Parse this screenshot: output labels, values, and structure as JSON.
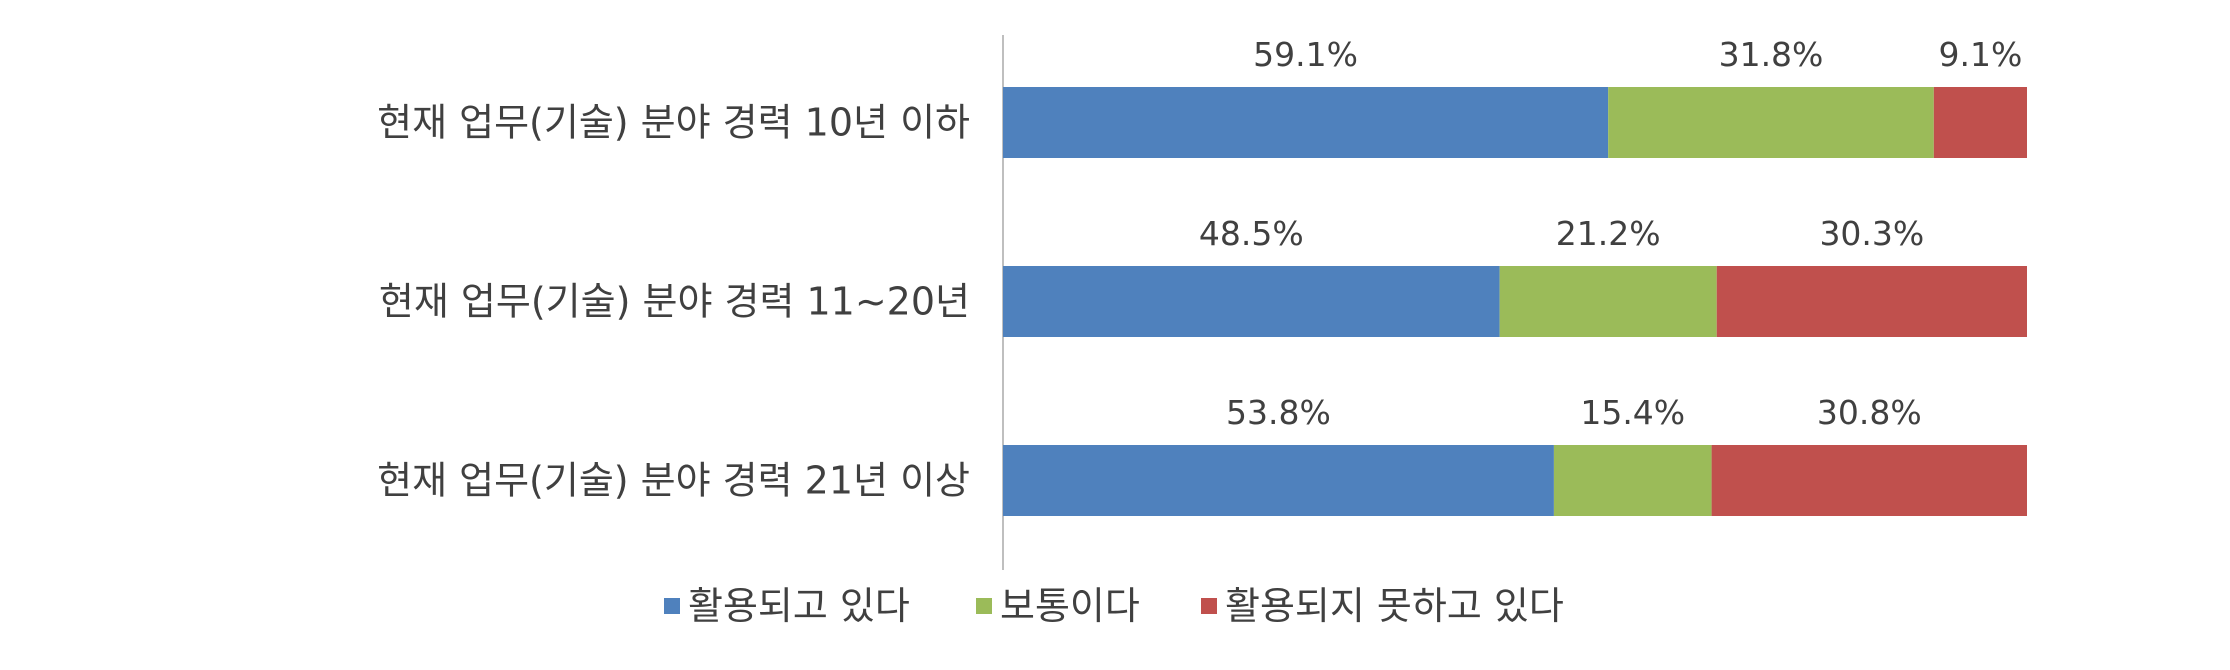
{
  "chart_data": {
    "type": "bar",
    "orientation": "horizontal",
    "stacked": true,
    "title": "",
    "xlabel": "",
    "ylabel": "",
    "xlim": [
      0,
      100
    ],
    "grid": false,
    "legend_position": "bottom",
    "categories": [
      "현재 업무(기술) 분야 경력 10년 이하",
      "현재 업무(기술) 분야 경력 11~20년",
      "현재 업무(기술) 분야 경력 21년 이상"
    ],
    "series": [
      {
        "name": "활용되고 있다",
        "color": "#4F81BD",
        "values": [
          59.1,
          48.5,
          53.8
        ],
        "labels": [
          "59.1%",
          "48.5%",
          "53.8%"
        ]
      },
      {
        "name": "보통이다",
        "color": "#9BBB59",
        "values": [
          31.8,
          21.2,
          15.4
        ],
        "labels": [
          "31.8%",
          "21.2%",
          "15.4%"
        ]
      },
      {
        "name": "활용되지 못하고 있다",
        "color": "#C0504D",
        "values": [
          9.1,
          30.3,
          30.8
        ],
        "labels": [
          "9.1%",
          "30.3%",
          "30.8%"
        ]
      }
    ]
  }
}
